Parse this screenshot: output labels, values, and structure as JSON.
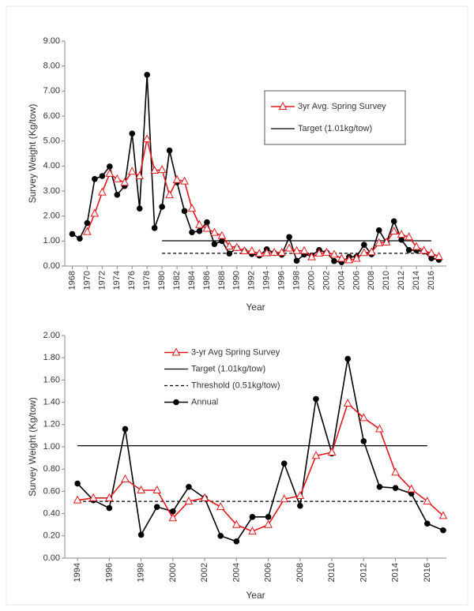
{
  "chart_data": [
    {
      "type": "line",
      "xlabel": "Year",
      "ylabel": "Survey Weight (Kg/tow)",
      "x": [
        1968,
        1969,
        1970,
        1971,
        1972,
        1973,
        1974,
        1975,
        1976,
        1977,
        1978,
        1979,
        1980,
        1981,
        1982,
        1983,
        1984,
        1985,
        1986,
        1987,
        1988,
        1989,
        1990,
        1991,
        1992,
        1993,
        1994,
        1995,
        1996,
        1997,
        1998,
        1999,
        2000,
        2001,
        2002,
        2003,
        2004,
        2005,
        2006,
        2007,
        2008,
        2009,
        2010,
        2011,
        2012,
        2013,
        2014,
        2015,
        2016,
        2017
      ],
      "series": [
        {
          "name": "3yr Avg. Spring Survey",
          "color": "#e0191e",
          "marker": "triangle",
          "values": [
            null,
            null,
            1.37,
            2.1,
            2.95,
            3.7,
            3.48,
            3.34,
            3.78,
            3.6,
            5.08,
            3.82,
            3.85,
            2.84,
            3.45,
            3.39,
            2.3,
            1.65,
            1.5,
            1.34,
            1.21,
            0.79,
            0.74,
            0.6,
            0.6,
            0.5,
            0.52,
            0.54,
            0.54,
            0.71,
            0.61,
            0.61,
            0.36,
            0.51,
            0.54,
            0.46,
            0.3,
            0.24,
            0.3,
            0.53,
            0.56,
            0.92,
            0.95,
            1.39,
            1.26,
            1.16,
            0.77,
            0.62,
            0.51,
            0.38
          ]
        },
        {
          "color": "#000000",
          "marker": "circle",
          "values": [
            1.28,
            1.1,
            1.72,
            3.48,
            3.6,
            3.98,
            2.85,
            3.2,
            5.3,
            2.3,
            7.65,
            1.52,
            2.37,
            4.62,
            3.35,
            2.2,
            1.35,
            1.4,
            1.75,
            0.88,
            1.0,
            0.5,
            0.72,
            0.6,
            0.48,
            0.42,
            0.67,
            0.52,
            0.45,
            1.16,
            0.21,
            0.46,
            0.42,
            0.64,
            0.54,
            0.2,
            0.15,
            0.37,
            0.37,
            0.85,
            0.47,
            1.43,
            0.94,
            1.79,
            1.05,
            0.64,
            0.63,
            0.58,
            0.31,
            0.25
          ]
        }
      ],
      "lines": [
        {
          "name": "Target (1.01kg/tow)",
          "value": 1.01,
          "x": [
            1980,
            2016
          ],
          "style": "solid",
          "color": "#000000"
        },
        {
          "value": 0.51,
          "x": [
            1980,
            2016
          ],
          "style": "dashed",
          "color": "#000000"
        }
      ],
      "xlim": [
        1967,
        2018
      ],
      "xticks": [
        1968,
        1970,
        1972,
        1974,
        1976,
        1978,
        1980,
        1982,
        1984,
        1986,
        1988,
        1990,
        1992,
        1994,
        1996,
        1998,
        2000,
        2002,
        2004,
        2006,
        2008,
        2010,
        2012,
        2014,
        2016
      ],
      "ylim": [
        0,
        9
      ],
      "yticks": [
        {
          "value": 0,
          "label": "0.00"
        },
        {
          "value": 1,
          "label": "1.00"
        },
        {
          "value": 2,
          "label": "2.00"
        },
        {
          "value": 3,
          "label": "3.00"
        },
        {
          "value": 4,
          "label": "4.00"
        },
        {
          "value": 5,
          "label": "5.00"
        },
        {
          "value": 6,
          "label": "6.00"
        },
        {
          "value": 7,
          "label": "7.00"
        },
        {
          "value": 8,
          "label": "8.00"
        },
        {
          "value": 9,
          "label": "9.00"
        }
      ]
    },
    {
      "type": "line",
      "xlabel": "Year",
      "ylabel": "Survey Weight (Kg/tow)",
      "x": [
        1994,
        1995,
        1996,
        1997,
        1998,
        1999,
        2000,
        2001,
        2002,
        2003,
        2004,
        2005,
        2006,
        2007,
        2008,
        2009,
        2010,
        2011,
        2012,
        2013,
        2014,
        2015,
        2016,
        2017
      ],
      "series": [
        {
          "name": "3-yr Avg Spring Survey",
          "color": "#e0191e",
          "marker": "triangle",
          "values": [
            0.52,
            0.54,
            0.54,
            0.71,
            0.61,
            0.61,
            0.36,
            0.51,
            0.54,
            0.46,
            0.3,
            0.24,
            0.3,
            0.53,
            0.56,
            0.92,
            0.95,
            1.39,
            1.26,
            1.16,
            0.77,
            0.62,
            0.51,
            0.38
          ]
        },
        {
          "name": "Annual",
          "color": "#000000",
          "marker": "circle",
          "values": [
            0.67,
            0.52,
            0.45,
            1.16,
            0.21,
            0.46,
            0.42,
            0.64,
            0.54,
            0.2,
            0.15,
            0.37,
            0.37,
            0.85,
            0.47,
            1.43,
            0.94,
            1.79,
            1.05,
            0.64,
            0.63,
            0.58,
            0.31,
            0.25
          ]
        }
      ],
      "lines": [
        {
          "name": "Target (1.01kg/tow)",
          "value": 1.01,
          "x": [
            1994,
            2016
          ],
          "style": "solid",
          "color": "#000000"
        },
        {
          "name": "Threshold (0.51kg/tow)",
          "value": 0.51,
          "x": [
            1994,
            2016
          ],
          "style": "dashed",
          "color": "#000000"
        }
      ],
      "xlim": [
        1993.2,
        2017.2
      ],
      "xticks": [
        1994,
        1996,
        1998,
        2000,
        2002,
        2004,
        2006,
        2008,
        2010,
        2012,
        2014,
        2016
      ],
      "ylim": [
        0,
        2
      ],
      "yticks": [
        {
          "value": 0,
          "label": "0.00"
        },
        {
          "value": 0.2,
          "label": "0.20"
        },
        {
          "value": 0.4,
          "label": "0.40"
        },
        {
          "value": 0.6,
          "label": "0.60"
        },
        {
          "value": 0.8,
          "label": "0.80"
        },
        {
          "value": 1,
          "label": "1.00"
        },
        {
          "value": 1.2,
          "label": "1.20"
        },
        {
          "value": 1.4,
          "label": "1.40"
        },
        {
          "value": 1.6,
          "label": "1.60"
        },
        {
          "value": 1.8,
          "label": "1.80"
        },
        {
          "value": 2,
          "label": "2.00"
        }
      ]
    }
  ]
}
